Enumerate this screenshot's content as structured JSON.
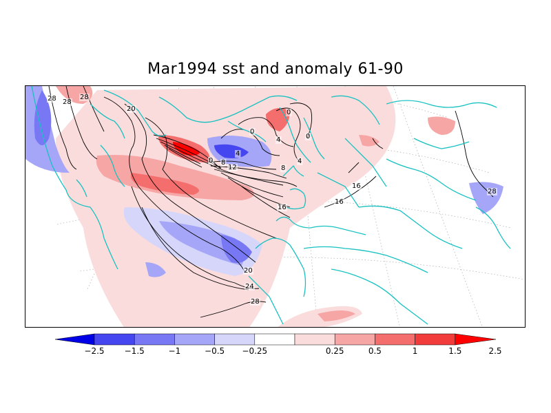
{
  "map": {
    "title": "Mar1994 sst and anomaly 61-90",
    "contour_labels": [
      "28",
      "28",
      "28",
      "20",
      "0",
      "0",
      "0",
      "4",
      "0",
      "4",
      "8",
      "12",
      "8",
      "4",
      "16",
      "16",
      "16",
      "20",
      "24",
      "28",
      "28"
    ]
  },
  "colors": {
    "neg_2_5": "#0000e6",
    "neg_1_5": "#4646f0",
    "neg_1": "#7878f5",
    "neg_0_5": "#a6a6f8",
    "neg_0_25": "#d6d6fb",
    "pos_0_25": "#fadcdc",
    "pos_0_5": "#f7a6a6",
    "pos_1": "#f46e6e",
    "pos_1_5": "#f23c3c",
    "pos_2_5": "#ff0000",
    "coast": "#17c1c1",
    "contour": "#000000"
  },
  "colorbar": {
    "ticks": [
      "-2.5",
      "-1.5",
      "-1",
      "-0.5",
      "-0.25",
      "0.25",
      "0.5",
      "1",
      "1.5",
      "2.5"
    ]
  }
}
